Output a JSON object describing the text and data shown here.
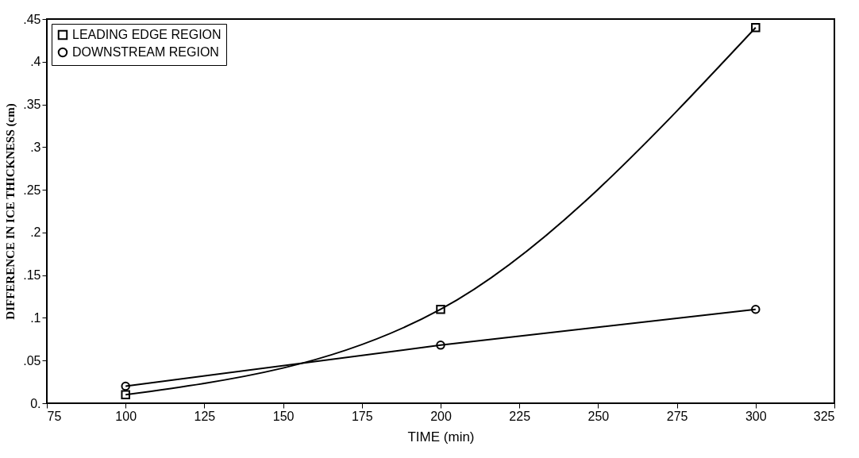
{
  "chart_data": {
    "type": "line",
    "xlabel": "TIME (min)",
    "ylabel": "DIFFERENCE IN ICE THICKNESS (cm)",
    "x": [
      100,
      200,
      300
    ],
    "series": [
      {
        "name": "LEADING EDGE REGION",
        "color": "#000000",
        "marker": "square",
        "values": [
          0.01,
          0.11,
          0.44
        ]
      },
      {
        "name": "DOWNSTREAM REGION",
        "color": "#000000",
        "marker": "circle",
        "values": [
          0.02,
          0.068,
          0.11
        ]
      }
    ],
    "xlim": [
      75,
      325
    ],
    "xticks": [
      75,
      100,
      125,
      150,
      175,
      200,
      225,
      250,
      275,
      300,
      325
    ],
    "ylim": [
      0,
      0.45
    ],
    "yticks": [
      {
        "value": 0,
        "label": "0."
      },
      {
        "value": 0.05,
        "label": ".05"
      },
      {
        "value": 0.1,
        "label": ".1"
      },
      {
        "value": 0.15,
        "label": ".15"
      },
      {
        "value": 0.2,
        "label": ".2"
      },
      {
        "value": 0.25,
        "label": ".25"
      },
      {
        "value": 0.3,
        "label": ".3"
      },
      {
        "value": 0.35,
        "label": ".35"
      },
      {
        "value": 0.4,
        "label": ".4"
      },
      {
        "value": 0.45,
        "label": ".45"
      }
    ],
    "grid": false,
    "legend": "top left",
    "line_style": "solid"
  }
}
